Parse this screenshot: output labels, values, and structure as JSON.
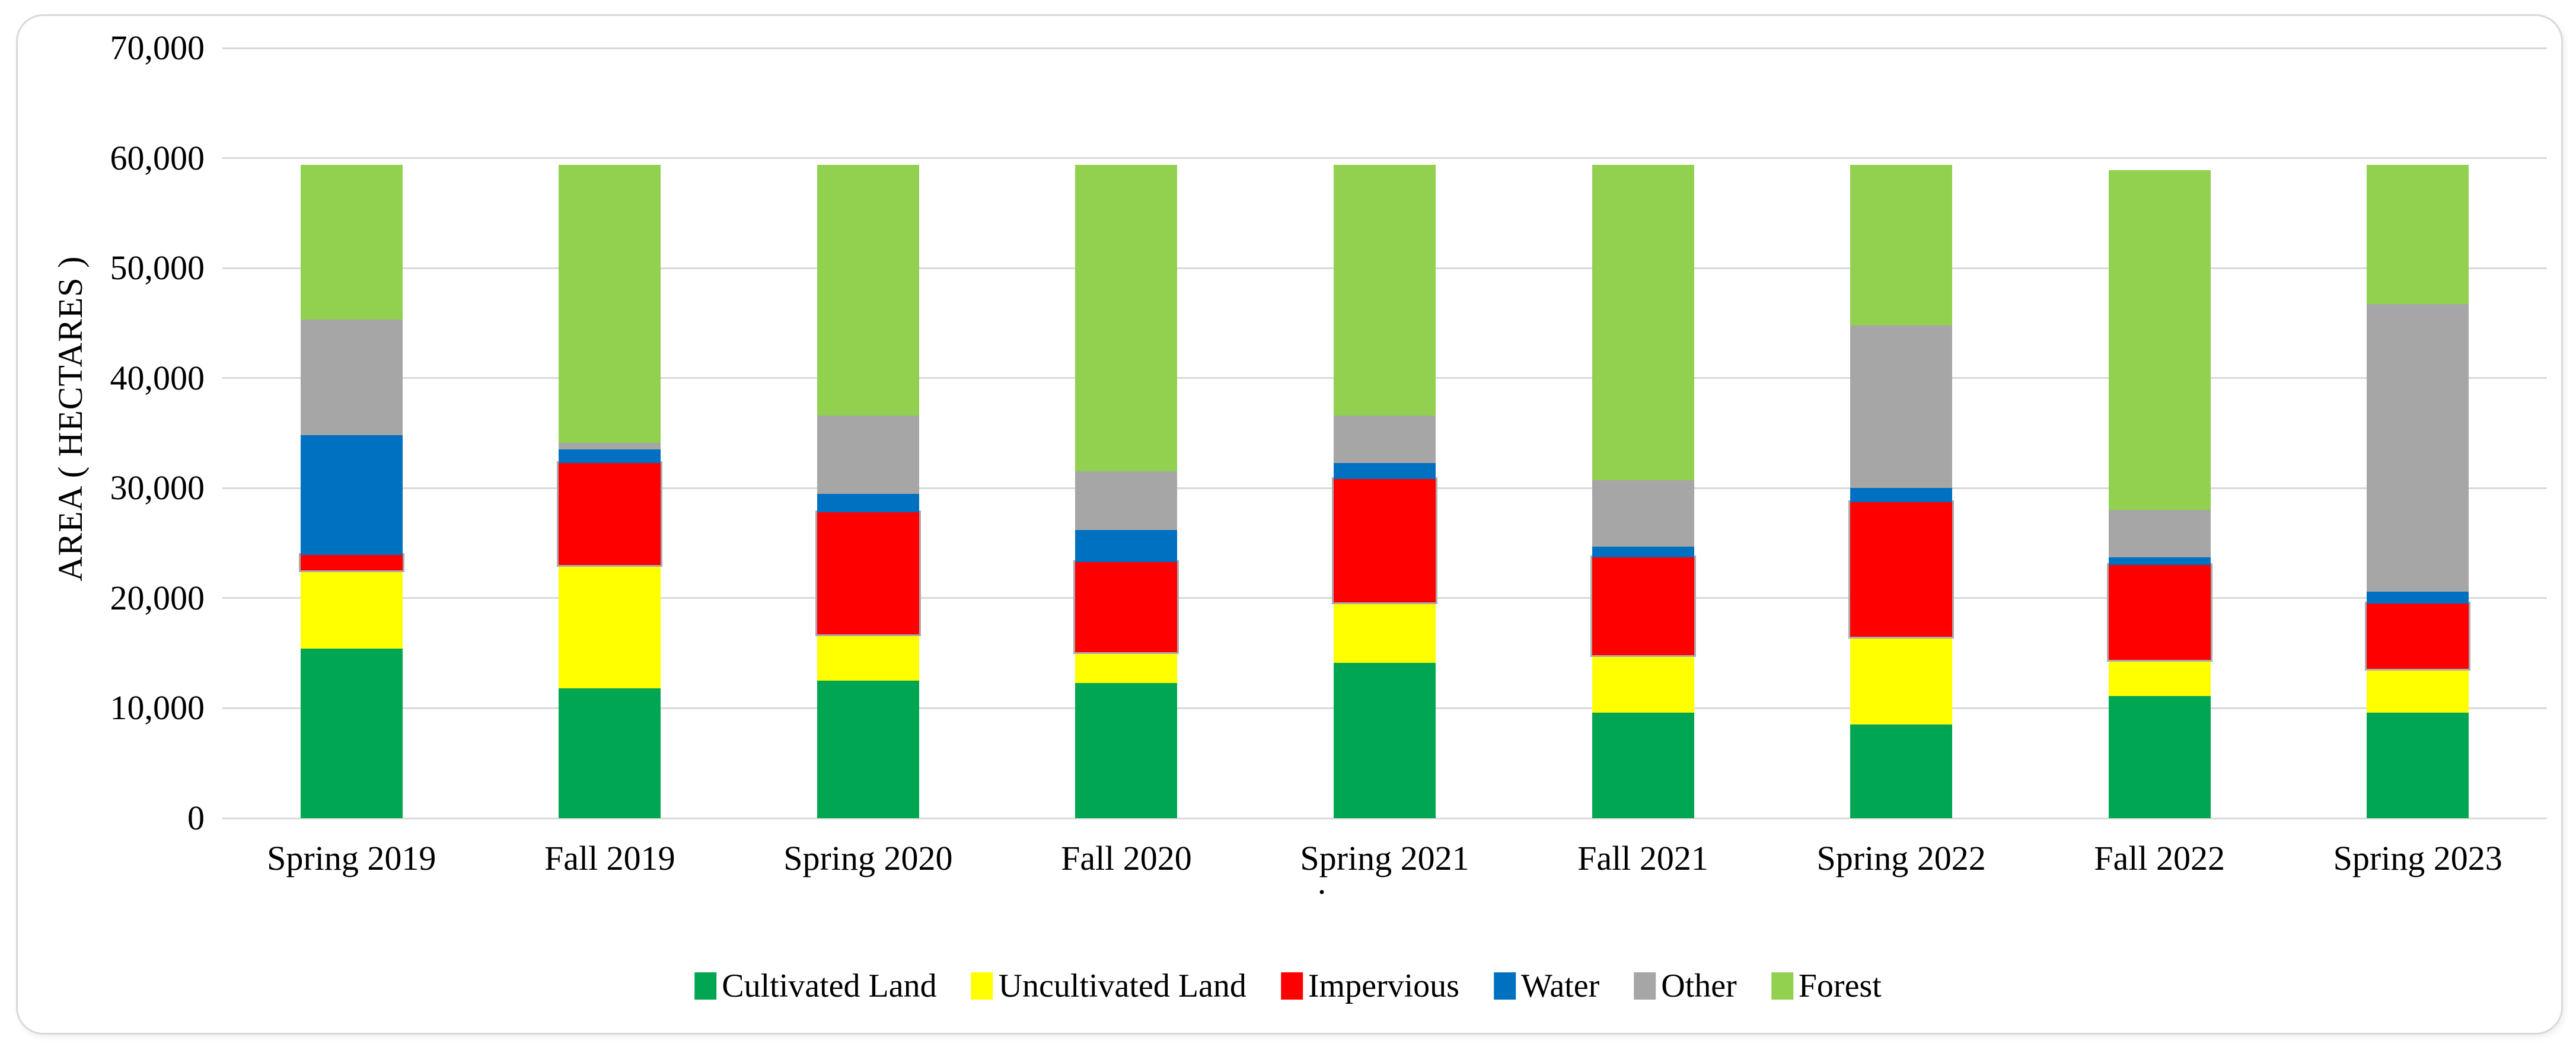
{
  "figure": {
    "background": "#FFFFFF",
    "card_border_color": "#D9D9D9",
    "stray_dot": "."
  },
  "chart_data": {
    "type": "bar",
    "stacked": true,
    "title": "",
    "xlabel": "",
    "ylabel": "AREA ( HECTARES )",
    "ylim": [
      0,
      70000
    ],
    "y_tick_interval": 10000,
    "y_tick_labels": [
      "0",
      "10,000",
      "20,000",
      "30,000",
      "40,000",
      "50,000",
      "60,000",
      "70,000"
    ],
    "grid": "horizontal",
    "gridline_color": "#D9D9D9",
    "legend_position": "bottom",
    "categories": [
      "Spring 2019",
      "Fall 2019",
      "Spring 2020",
      "Fall 2020",
      "Spring 2021",
      "Fall 2021",
      "Spring 2022",
      "Fall 2022",
      "Spring 2023"
    ],
    "series": [
      {
        "name": "Cultivated Land",
        "color": "#00A651",
        "values": [
          15400,
          11800,
          12500,
          12300,
          14100,
          9600,
          8500,
          11100,
          9600
        ]
      },
      {
        "name": "Uncultivated Land",
        "color": "#FFFF00",
        "values": [
          7100,
          11200,
          4200,
          2800,
          5500,
          5200,
          8000,
          3300,
          4000
        ]
      },
      {
        "name": "Impervious",
        "color": "#FF0000",
        "values": [
          1400,
          9300,
          11100,
          8200,
          11200,
          8900,
          12200,
          8600,
          5900
        ]
      },
      {
        "name": "Water",
        "color": "#0070C0",
        "values": [
          10900,
          1200,
          1700,
          2900,
          1500,
          1000,
          1300,
          700,
          1100
        ]
      },
      {
        "name": "Other",
        "color": "#A6A6A6",
        "values": [
          10500,
          600,
          7100,
          5300,
          4300,
          6000,
          14800,
          4300,
          26100
        ]
      },
      {
        "name": "Forest",
        "color": "#92D050",
        "values": [
          14100,
          25300,
          22800,
          27900,
          22800,
          28700,
          14600,
          30900,
          12700
        ]
      }
    ],
    "bar_totals": [
      59400,
      59400,
      59400,
      59400,
      59400,
      59400,
      59400,
      58900,
      59400
    ]
  }
}
